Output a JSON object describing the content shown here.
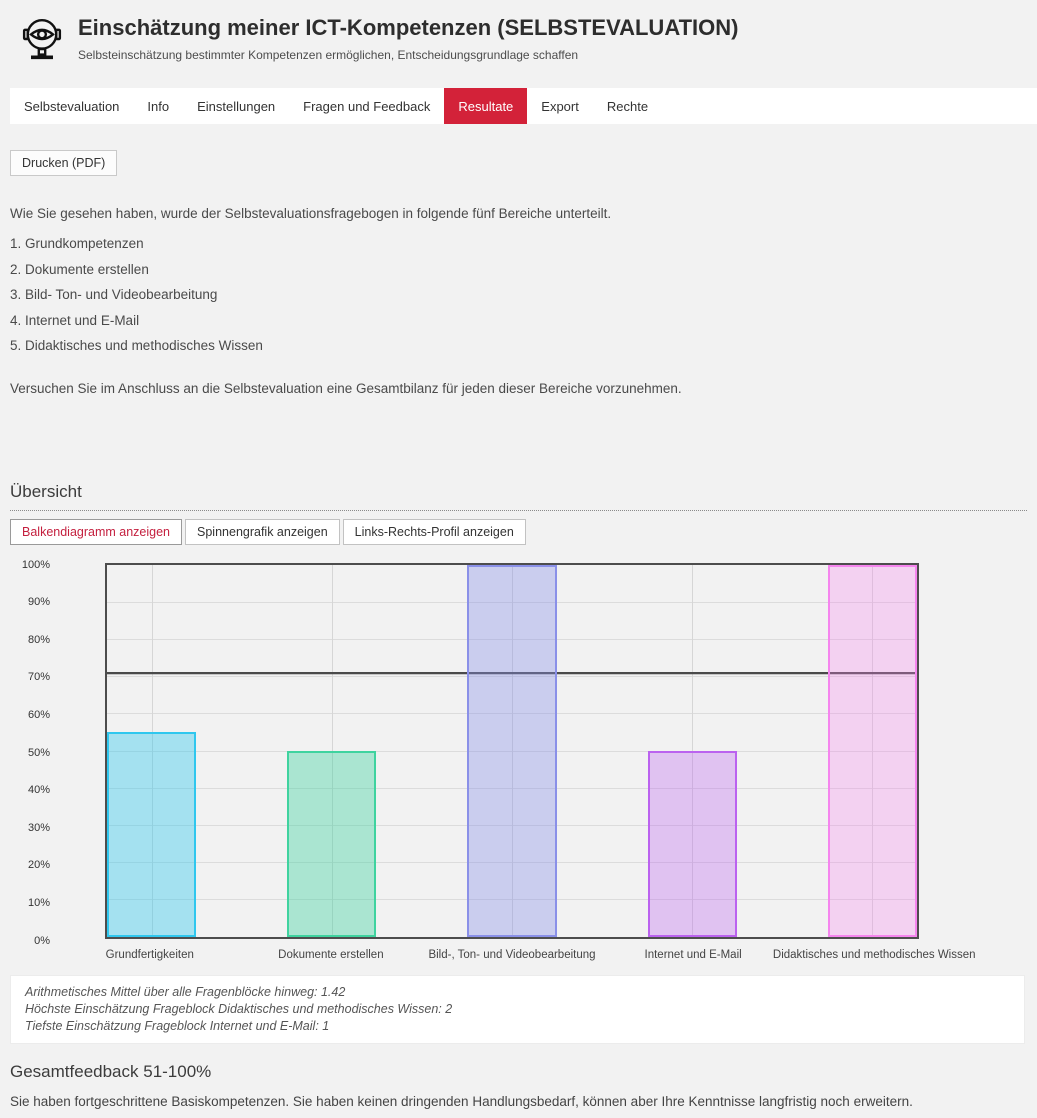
{
  "header": {
    "title": "Einschätzung meiner ICT-Kompetenzen (SELBSTEVALUATION)",
    "subtitle": "Selbsteinschätzung bestimmter Kompetenzen ermöglichen, Entscheidungsgrundlage schaffen",
    "logo_icon": "eye-mirror-icon"
  },
  "nav": {
    "active_bg": "#d32239",
    "tabs": [
      {
        "label": "Selbstevaluation",
        "active": false
      },
      {
        "label": "Info",
        "active": false
      },
      {
        "label": "Einstellungen",
        "active": false
      },
      {
        "label": "Fragen und Feedback",
        "active": false
      },
      {
        "label": "Resultate",
        "active": true
      },
      {
        "label": "Export",
        "active": false
      },
      {
        "label": "Rechte",
        "active": false
      }
    ]
  },
  "toolbar": {
    "print_label": "Drucken (PDF)"
  },
  "intro": {
    "lead": "Wie Sie gesehen haben, wurde der Selbstevaluationsfragebogen in folgende fünf Bereiche unterteilt.",
    "list": [
      "1. Grundkompetenzen",
      "2. Dokumente erstellen",
      "3. Bild- Ton- und Videobearbeitung",
      "4. Internet und E-Mail",
      "5. Didaktisches und methodisches Wissen"
    ],
    "closing": "Versuchen Sie im Anschluss an die Selbstevaluation eine Gesamtbilanz für jeden dieser Bereiche vorzunehmen."
  },
  "overview": {
    "heading": "Übersicht",
    "buttons": [
      {
        "label": "Balkendiagramm anzeigen",
        "active": true,
        "active_text_color": "#c41f3e"
      },
      {
        "label": "Spinnengrafik anzeigen",
        "active": false
      },
      {
        "label": "Links-Rechts-Profil anzeigen",
        "active": false
      }
    ]
  },
  "chart_data": {
    "type": "bar",
    "title": "",
    "xlabel": "",
    "ylabel": "",
    "categories": [
      "Grundfertigkeiten",
      "Dokumente erstellen",
      "Bild-, Ton- und Videobearbeitung",
      "Internet und E-Mail",
      "Didaktisches und methodisches Wissen"
    ],
    "values": [
      55,
      50,
      100,
      50,
      100
    ],
    "unit": "%",
    "ylim": [
      0,
      100
    ],
    "y_ticks": [
      "100%",
      "90%",
      "80%",
      "70%",
      "60%",
      "50%",
      "40%",
      "30%",
      "20%",
      "10%",
      "0%"
    ],
    "threshold_line": 71,
    "grid": true,
    "legend": "none",
    "bar_width_pct": 11,
    "bar_colors": [
      {
        "fill": "rgba(47,199,238,0.40)",
        "border": "#2fc7ee"
      },
      {
        "fill": "rgba(63,211,159,0.40)",
        "border": "#3fd39f"
      },
      {
        "fill": "rgba(138,144,232,0.38)",
        "border": "#8a90e8"
      },
      {
        "fill": "rgba(187,98,239,0.33)",
        "border": "#bb62ef"
      },
      {
        "fill": "rgba(245,133,238,0.30)",
        "border": "#f585ee"
      }
    ]
  },
  "chart_notes": {
    "lines": [
      "Arithmetisches Mittel über alle Fragenblöcke hinweg: 1.42",
      "Höchste Einschätzung Frageblock Didaktisches und methodisches Wissen: 2",
      "Tiefste Einschätzung Frageblock Internet und E-Mail: 1"
    ]
  },
  "feedback": {
    "heading": "Gesamtfeedback 51-100%",
    "text": "Sie haben fortgeschrittene Basiskompetenzen. Sie haben keinen dringenden Handlungsbedarf, können aber Ihre Kenntnisse langfristig noch erweitern."
  }
}
